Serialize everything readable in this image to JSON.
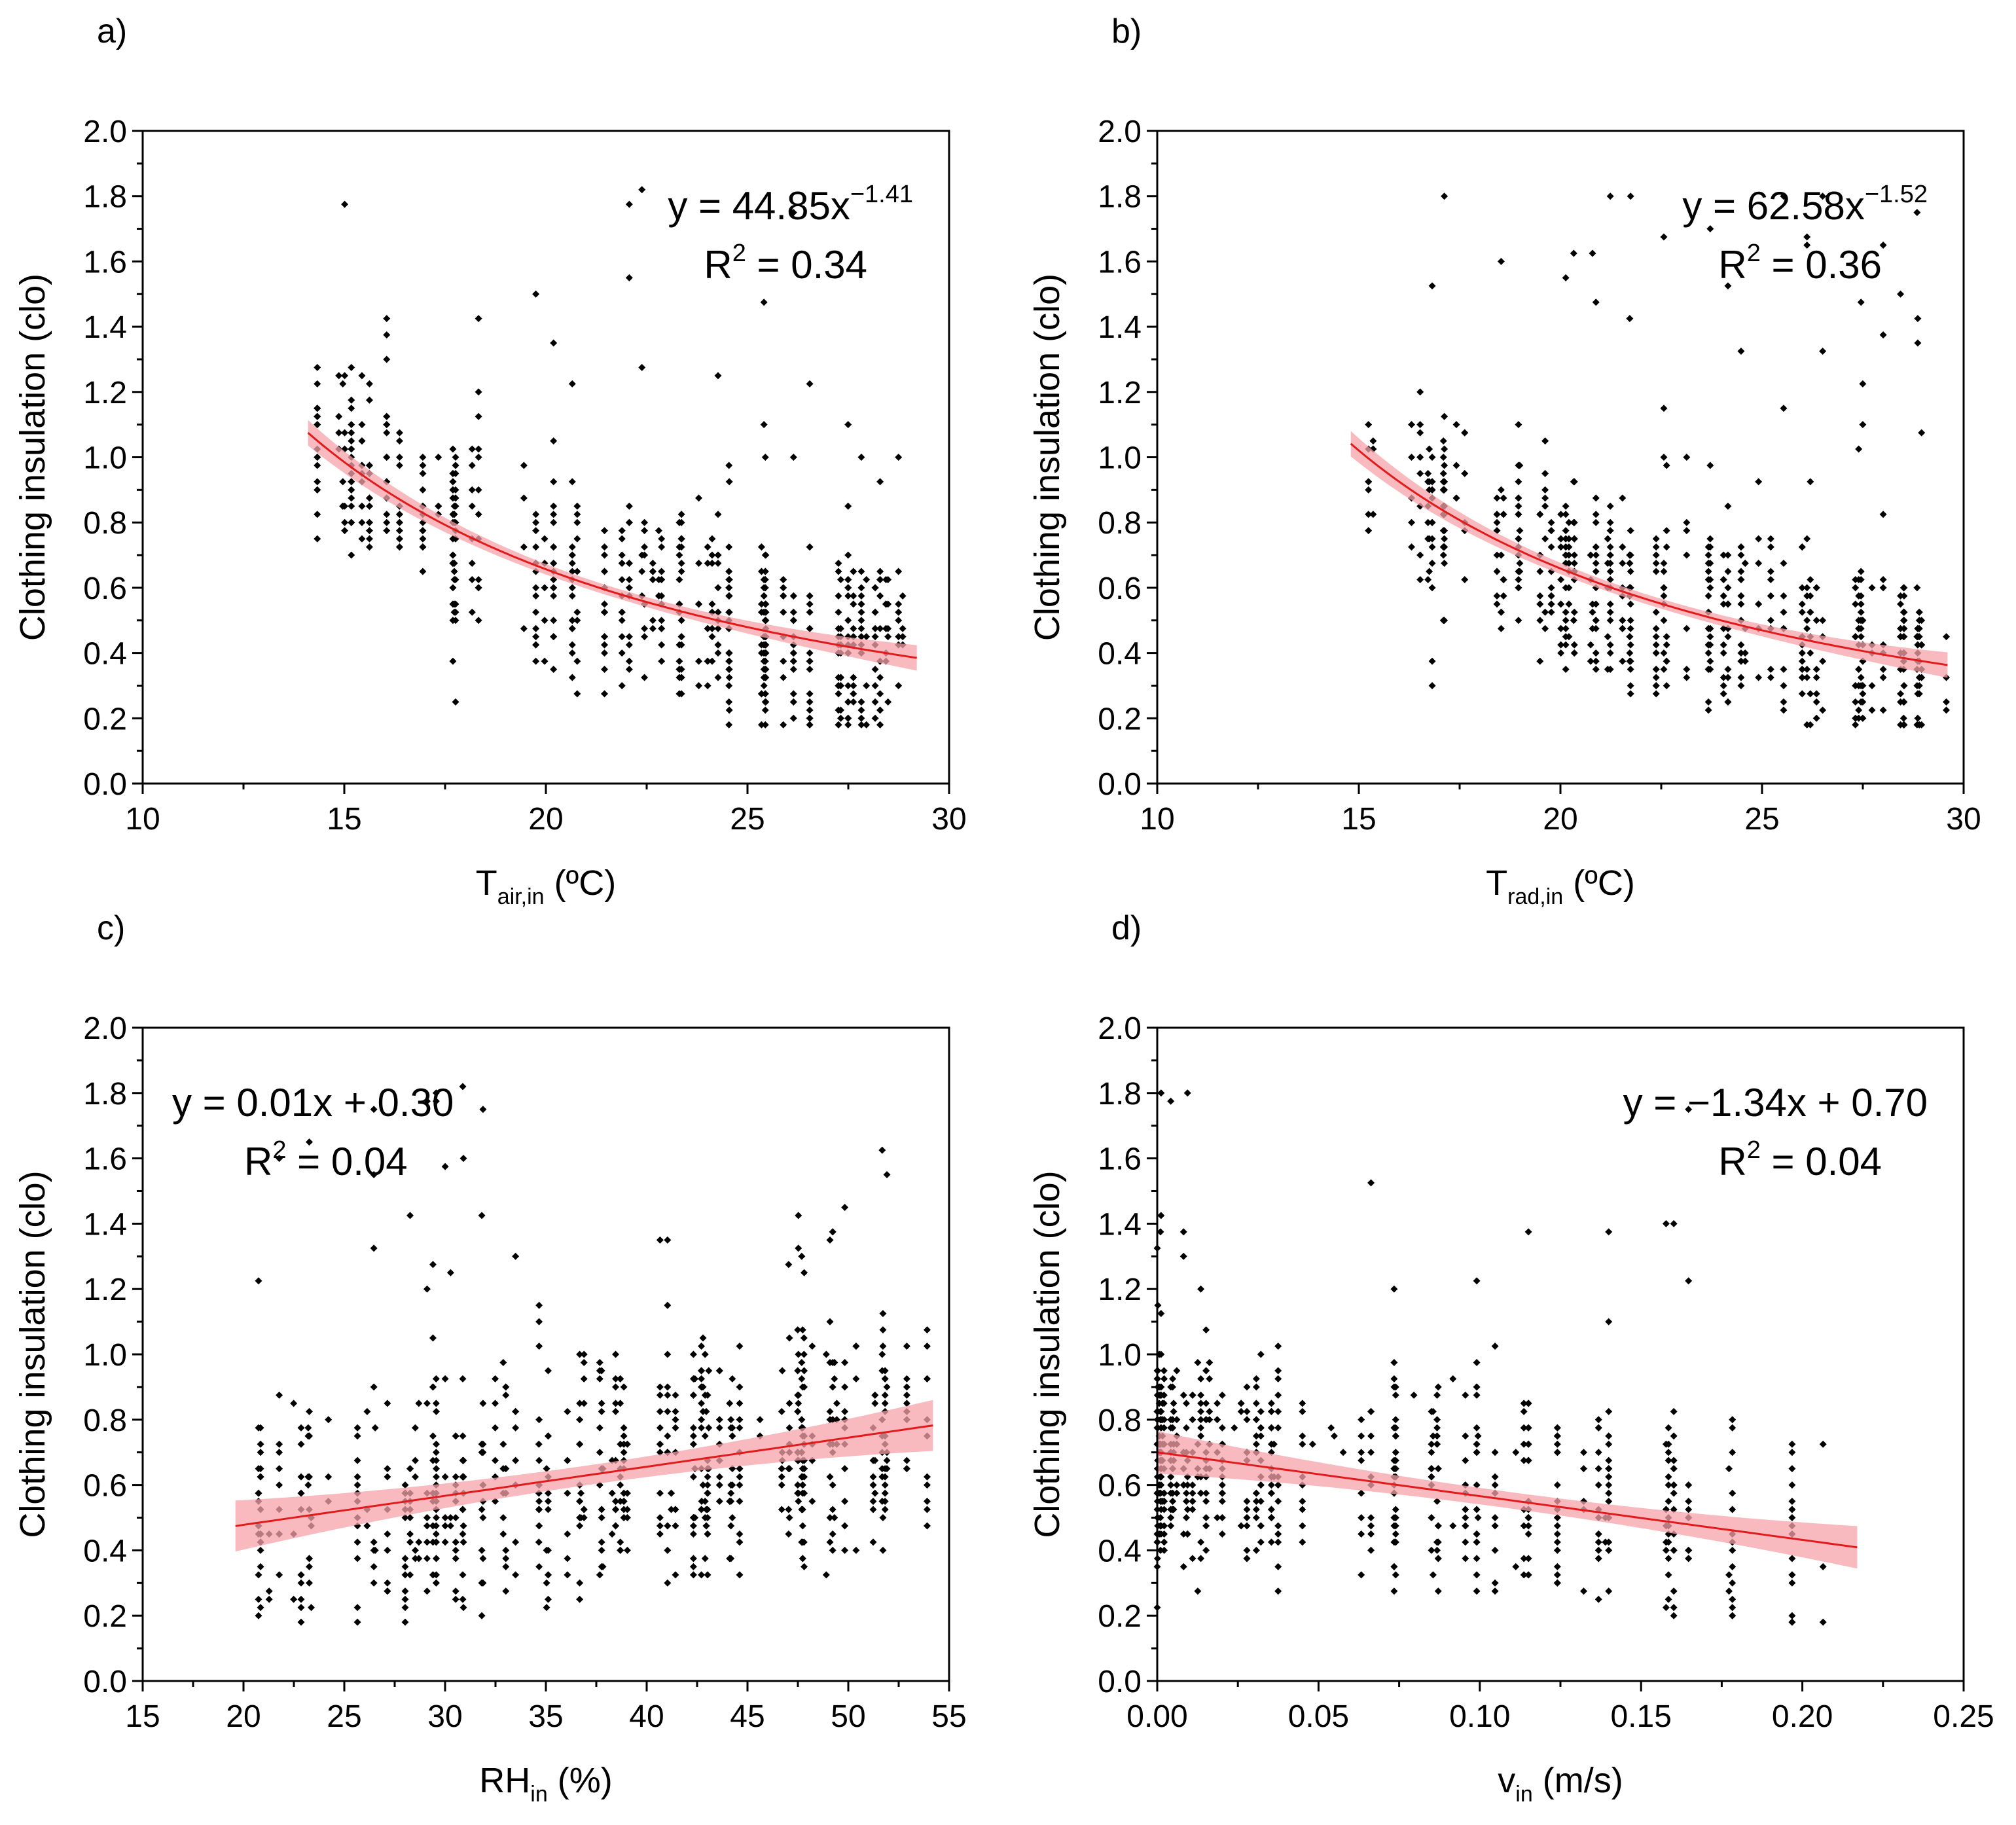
{
  "colors": {
    "points": "#000000",
    "fit_line": "#e31a1c",
    "ci_band": "#f5a3a8",
    "axis": "#000000"
  },
  "chart_data": [
    {
      "panel": "a)",
      "type": "scatter",
      "ylabel": "Clothing insulation (clo)",
      "xlabel": {
        "main": "T",
        "sub": "air,in",
        "unit": " (ºC)"
      },
      "xlim": [
        10,
        30
      ],
      "xticks": [
        10,
        15,
        20,
        25,
        30
      ],
      "xtick_labels": [
        "10",
        "15",
        "20",
        "25",
        "30"
      ],
      "ylim": [
        0,
        2
      ],
      "yticks": [
        0,
        0.2,
        0.4,
        0.6,
        0.8,
        1.0,
        1.2,
        1.4,
        1.6,
        1.8,
        2.0
      ],
      "ytick_labels": [
        "0.0",
        "0.2",
        "0.4",
        "0.6",
        "0.8",
        "1.0",
        "1.2",
        "1.4",
        "1.6",
        "1.8",
        "2.0"
      ],
      "equation": {
        "text": "y = 44.85x",
        "sup": "−1.41"
      },
      "r2": {
        "pre": "R",
        "sup": "2",
        "post": " = 0.34"
      },
      "annotation_position": "top-right",
      "fit": {
        "model": "power",
        "a": 44.85,
        "b": -1.41,
        "x_range": [
          14.1,
          29.2
        ],
        "ci_half_width": 0.015
      },
      "points": {
        "seed": 11,
        "x_range": [
          14.1,
          29.2
        ],
        "stacks": 58,
        "per_stack": [
          4,
          22
        ],
        "y_range": [
          0.18,
          1.82
        ],
        "noise": 0.22
      }
    },
    {
      "panel": "b)",
      "type": "scatter",
      "ylabel": "Clothing insulation (clo)",
      "xlabel": {
        "main": "T",
        "sub": "rad,in",
        "unit": " (ºC)"
      },
      "xlim": [
        10,
        30
      ],
      "xticks": [
        10,
        15,
        20,
        25,
        30
      ],
      "xtick_labels": [
        "10",
        "15",
        "20",
        "25",
        "30"
      ],
      "ylim": [
        0,
        2
      ],
      "yticks": [
        0,
        0.2,
        0.4,
        0.6,
        0.8,
        1.0,
        1.2,
        1.4,
        1.6,
        1.8,
        2.0
      ],
      "ytick_labels": [
        "0.0",
        "0.2",
        "0.4",
        "0.6",
        "0.8",
        "1.0",
        "1.2",
        "1.4",
        "1.6",
        "1.8",
        "2.0"
      ],
      "equation": {
        "text": "y = 62.58x",
        "sup": "−1.52"
      },
      "r2": {
        "pre": "R",
        "sup": "2",
        "post": " = 0.36"
      },
      "annotation_position": "top-right",
      "fit": {
        "model": "power",
        "a": 62.58,
        "b": -1.52,
        "x_range": [
          14.8,
          29.6
        ],
        "ci_half_width": 0.015
      },
      "points": {
        "seed": 23,
        "x_range": [
          14.8,
          29.6
        ],
        "stacks": 64,
        "per_stack": [
          4,
          20
        ],
        "y_range": [
          0.18,
          1.82
        ],
        "noise": 0.22
      }
    },
    {
      "panel": "c)",
      "type": "scatter",
      "ylabel": "Clothing insulation (clo)",
      "xlabel": {
        "main": "RH",
        "sub": "in",
        "unit": " (%)"
      },
      "xlim": [
        15,
        55
      ],
      "xticks": [
        15,
        20,
        25,
        30,
        35,
        40,
        45,
        50,
        55
      ],
      "xtick_labels": [
        "15",
        "20",
        "25",
        "30",
        "35",
        "40",
        "45",
        "50",
        "55"
      ],
      "ylim": [
        0,
        2
      ],
      "yticks": [
        0,
        0.2,
        0.4,
        0.6,
        0.8,
        1.0,
        1.2,
        1.4,
        1.6,
        1.8,
        2.0
      ],
      "ytick_labels": [
        "0.0",
        "0.2",
        "0.4",
        "0.6",
        "0.8",
        "1.0",
        "1.2",
        "1.4",
        "1.6",
        "1.8",
        "2.0"
      ],
      "equation": {
        "text": "y = 0.01x + 0.30",
        "sup": ""
      },
      "r2": {
        "pre": "R",
        "sup": "2",
        "post": " = 0.04"
      },
      "annotation_position": "top-left",
      "fit": {
        "model": "linear",
        "a": 0.3,
        "b": 0.0089,
        "x_range": [
          19.6,
          54.2
        ],
        "ci_half_width": 0.03
      },
      "points": {
        "seed": 37,
        "x_range": [
          19.6,
          54.2
        ],
        "stacks": 95,
        "per_stack": [
          2,
          16
        ],
        "y_range": [
          0.18,
          1.82
        ],
        "noise": 0.28
      }
    },
    {
      "panel": "d)",
      "type": "scatter",
      "ylabel": "Clothing insulation (clo)",
      "xlabel": {
        "main": "v",
        "sub": "in",
        "unit": " (m/s)"
      },
      "xlim": [
        0,
        0.25
      ],
      "xticks": [
        0,
        0.05,
        0.1,
        0.15,
        0.2,
        0.25
      ],
      "xtick_labels": [
        "0.00",
        "0.05",
        "0.10",
        "0.15",
        "0.20",
        "0.25"
      ],
      "ylim": [
        0,
        2
      ],
      "yticks": [
        0,
        0.2,
        0.4,
        0.6,
        0.8,
        1.0,
        1.2,
        1.4,
        1.6,
        1.8,
        2.0
      ],
      "ytick_labels": [
        "0.0",
        "0.2",
        "0.4",
        "0.6",
        "0.8",
        "1.0",
        "1.2",
        "1.4",
        "1.6",
        "1.8",
        "2.0"
      ],
      "equation": {
        "text": "y = −1.34x + 0.70",
        "sup": ""
      },
      "r2": {
        "pre": "R",
        "sup": "2",
        "post": " = 0.04"
      },
      "annotation_position": "top-right",
      "fit": {
        "model": "linear",
        "a": 0.7,
        "b": -1.34,
        "x_range": [
          0.0,
          0.217
        ],
        "ci_half_width": 0.025
      },
      "points": {
        "seed": 53,
        "x_range": [
          0.0,
          0.217
        ],
        "stacks": 70,
        "per_stack": [
          1,
          24
        ],
        "y_range": [
          0.18,
          1.82
        ],
        "noise": 0.24,
        "skew_low": true
      }
    }
  ]
}
